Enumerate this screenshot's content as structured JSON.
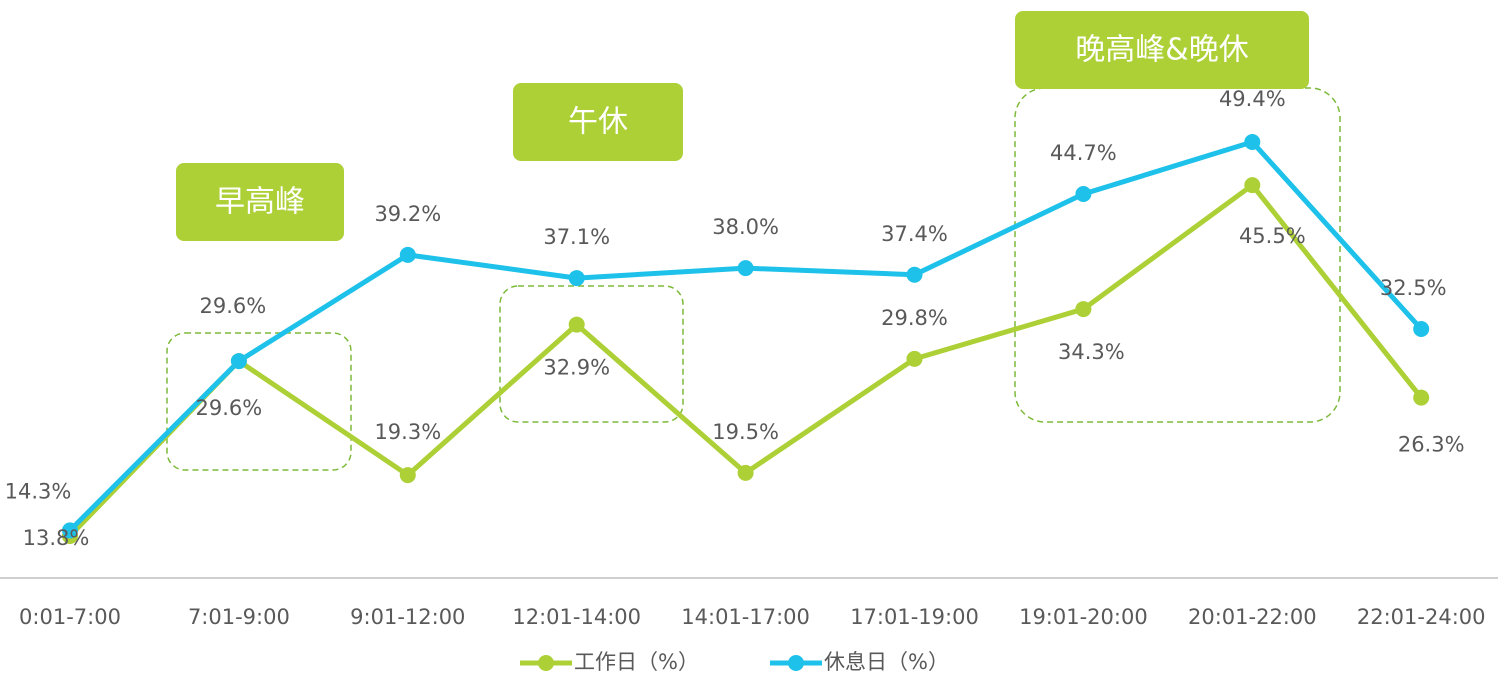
{
  "chart_data": {
    "type": "line",
    "categories": [
      "0:01-7:00",
      "7:01-9:00",
      "9:01-12:00",
      "12:01-14:00",
      "14:01-17:00",
      "17:01-19:00",
      "19:01-20:00",
      "20:01-22:00",
      "22:01-24:00"
    ],
    "series": [
      {
        "name": "工作日（%）",
        "color": "#acd036",
        "values": [
          13.8,
          29.6,
          19.3,
          32.9,
          19.5,
          29.8,
          34.3,
          45.5,
          26.3
        ],
        "value_labels": [
          "13.8%",
          "29.6%",
          "19.3%",
          "32.9%",
          "19.5%",
          "29.8%",
          "34.3%",
          "45.5%",
          "26.3%"
        ]
      },
      {
        "name": "休息日（%）",
        "color": "#1ec1e9",
        "values": [
          14.3,
          29.6,
          39.2,
          37.1,
          38.0,
          37.4,
          44.7,
          49.4,
          32.5
        ],
        "value_labels": [
          "14.3%",
          "29.6%",
          "39.2%",
          "37.1%",
          "38.0%",
          "37.4%",
          "44.7%",
          "49.4%",
          "32.5%"
        ]
      }
    ],
    "annotations": [
      "早高峰",
      "午休",
      "晚高峰&晚休"
    ],
    "ylim": [
      10,
      55
    ],
    "legend": "bottom"
  }
}
